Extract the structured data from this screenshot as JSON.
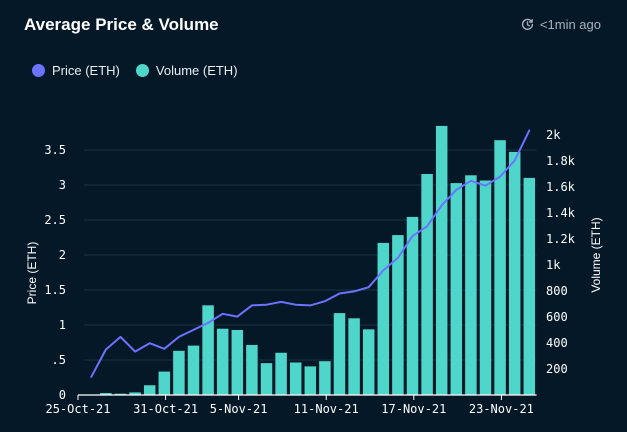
{
  "header": {
    "title": "Average Price & Volume",
    "updated": "<1min ago"
  },
  "colors": {
    "price": "#6b73ff",
    "volume": "#4fd6cb",
    "grid": "#1c3446",
    "background": "#041827"
  },
  "chart_data": {
    "type": "bar+line",
    "title": "Average Price & Volume",
    "legend": [
      "Price (ETH)",
      "Volume (ETH)"
    ],
    "legend_position": "top-left",
    "x_tick_labels": [
      "25-Oct-21",
      "31-Oct-21",
      "5-Nov-21",
      "11-Nov-21",
      "17-Nov-21",
      "23-Nov-21"
    ],
    "x_tick_index": [
      0,
      6,
      11,
      17,
      23,
      29
    ],
    "y_left": {
      "label": "Price (ETH)",
      "range": [
        0,
        3.8
      ],
      "ticks": [
        0,
        0.5,
        1,
        1.5,
        2,
        2.5,
        3,
        3.5
      ],
      "tick_labels": [
        "0",
        ".5",
        "1",
        "1.5",
        "2",
        "2.5",
        "3",
        "3.5"
      ]
    },
    "y_right": {
      "label": "Volume (ETH)",
      "range": [
        0,
        2100
      ],
      "ticks": [
        200,
        400,
        600,
        800,
        1000,
        1200,
        1400,
        1600,
        1800,
        2000
      ],
      "tick_labels": [
        "200",
        "400",
        "600",
        "800",
        "1k",
        "1.2k",
        "1.4k",
        "1.6k",
        "1.8k",
        "2k"
      ]
    },
    "grid": true,
    "series": [
      {
        "name": "Volume (ETH)",
        "type": "bar",
        "axis": "right",
        "values": [
          0,
          15,
          10,
          20,
          75,
          180,
          340,
          380,
          690,
          510,
          500,
          385,
          245,
          325,
          250,
          220,
          260,
          630,
          590,
          505,
          1170,
          1230,
          1370,
          1700,
          2070,
          1630,
          1690,
          1650,
          1960,
          1870,
          1670
        ]
      },
      {
        "name": "Price (ETH)",
        "type": "line",
        "axis": "left",
        "values": [
          0.26,
          0.65,
          0.83,
          0.62,
          0.74,
          0.66,
          0.83,
          0.93,
          1.03,
          1.16,
          1.12,
          1.28,
          1.29,
          1.33,
          1.29,
          1.28,
          1.34,
          1.45,
          1.48,
          1.54,
          1.78,
          1.96,
          2.27,
          2.41,
          2.71,
          2.93,
          3.06,
          2.99,
          3.12,
          3.35,
          3.78
        ]
      }
    ]
  }
}
